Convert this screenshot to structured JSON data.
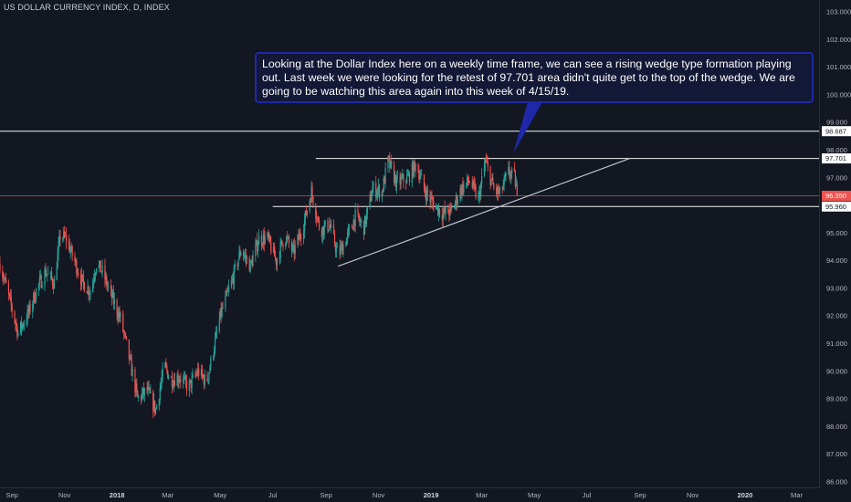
{
  "chart_data": {
    "type": "candlestick",
    "title": "US DOLLAR CURRENCY INDEX, D, INDEX",
    "ylim": [
      85.8,
      103.3
    ],
    "xlim": [
      "2017-08-18",
      "2020-03-27"
    ],
    "y_ticks": [
      "86.000",
      "87.000",
      "88.000",
      "89.000",
      "90.000",
      "91.000",
      "92.000",
      "93.000",
      "94.000",
      "95.000",
      "96.000",
      "97.000",
      "98.000",
      "99.000",
      "100.000",
      "101.000",
      "102.000",
      "103.000"
    ],
    "x_ticks": [
      {
        "label": "Sep",
        "date": "2017-09-01"
      },
      {
        "label": "Nov",
        "date": "2017-11-01"
      },
      {
        "label": "2018",
        "date": "2018-01-01",
        "bold": true
      },
      {
        "label": "Mar",
        "date": "2018-03-01"
      },
      {
        "label": "May",
        "date": "2018-05-01"
      },
      {
        "label": "Jul",
        "date": "2018-07-01"
      },
      {
        "label": "Sep",
        "date": "2018-09-01"
      },
      {
        "label": "Nov",
        "date": "2018-11-01"
      },
      {
        "label": "2019",
        "date": "2019-01-01",
        "bold": true
      },
      {
        "label": "Mar",
        "date": "2019-03-01"
      },
      {
        "label": "May",
        "date": "2019-05-01"
      },
      {
        "label": "Jul",
        "date": "2019-07-01"
      },
      {
        "label": "Sep",
        "date": "2019-09-01"
      },
      {
        "label": "Nov",
        "date": "2019-11-01"
      },
      {
        "label": "2020",
        "date": "2020-01-01",
        "bold": true
      },
      {
        "label": "Mar",
        "date": "2020-03-01"
      }
    ],
    "horizontal_levels": [
      {
        "label": "98.687",
        "value": 98.687,
        "start": "2017-08-18",
        "color": "#ffffff"
      },
      {
        "label": "97.701",
        "value": 97.701,
        "start": "2018-08-20",
        "color": "#ffffff"
      },
      {
        "label": "96.350",
        "value": 96.35,
        "start": "2017-08-18",
        "color": "#ef5350",
        "current": true
      },
      {
        "label": "95.960",
        "value": 95.96,
        "start": "2018-07-01",
        "color": "#ffffff"
      }
    ],
    "trendline": {
      "from": {
        "date": "2018-09-15",
        "value": 93.8
      },
      "to": {
        "date": "2019-08-20",
        "value": 97.7
      },
      "color": "#c0c4cc"
    },
    "price_path": [
      [
        "2017-08-18",
        93.9
      ],
      [
        "2017-08-29",
        92.6
      ],
      [
        "2017-09-08",
        91.4
      ],
      [
        "2017-09-20",
        92.1
      ],
      [
        "2017-09-30",
        93.0
      ],
      [
        "2017-10-10",
        93.6
      ],
      [
        "2017-10-20",
        93.2
      ],
      [
        "2017-10-27",
        94.9
      ],
      [
        "2017-11-03",
        94.8
      ],
      [
        "2017-11-10",
        94.2
      ],
      [
        "2017-11-22",
        93.2
      ],
      [
        "2017-12-01",
        92.9
      ],
      [
        "2017-12-08",
        93.9
      ],
      [
        "2017-12-15",
        93.6
      ],
      [
        "2017-12-22",
        93.0
      ],
      [
        "2018-01-05",
        91.9
      ],
      [
        "2018-01-15",
        90.5
      ],
      [
        "2018-01-25",
        89.0
      ],
      [
        "2018-02-05",
        89.3
      ],
      [
        "2018-02-15",
        88.6
      ],
      [
        "2018-02-25",
        90.2
      ],
      [
        "2018-03-05",
        89.7
      ],
      [
        "2018-03-15",
        89.8
      ],
      [
        "2018-03-25",
        89.4
      ],
      [
        "2018-04-05",
        90.0
      ],
      [
        "2018-04-15",
        89.6
      ],
      [
        "2018-04-22",
        90.6
      ],
      [
        "2018-05-01",
        92.0
      ],
      [
        "2018-05-15",
        93.3
      ],
      [
        "2018-05-25",
        94.4
      ],
      [
        "2018-06-05",
        93.8
      ],
      [
        "2018-06-15",
        94.8
      ],
      [
        "2018-06-25",
        94.8
      ],
      [
        "2018-07-05",
        94.0
      ],
      [
        "2018-07-15",
        94.9
      ],
      [
        "2018-07-25",
        94.3
      ],
      [
        "2018-08-05",
        95.2
      ],
      [
        "2018-08-15",
        96.5
      ],
      [
        "2018-08-25",
        95.1
      ],
      [
        "2018-09-05",
        95.3
      ],
      [
        "2018-09-15",
        94.2
      ],
      [
        "2018-09-25",
        94.8
      ],
      [
        "2018-10-05",
        95.6
      ],
      [
        "2018-10-15",
        95.2
      ],
      [
        "2018-10-25",
        96.6
      ],
      [
        "2018-11-05",
        96.5
      ],
      [
        "2018-11-12",
        97.6
      ],
      [
        "2018-11-22",
        96.8
      ],
      [
        "2018-12-05",
        97.0
      ],
      [
        "2018-12-15",
        97.5
      ],
      [
        "2018-12-25",
        96.5
      ],
      [
        "2019-01-05",
        96.0
      ],
      [
        "2019-01-15",
        95.7
      ],
      [
        "2019-01-25",
        95.8
      ],
      [
        "2019-02-05",
        96.6
      ],
      [
        "2019-02-15",
        96.9
      ],
      [
        "2019-02-25",
        96.2
      ],
      [
        "2019-03-05",
        97.6
      ],
      [
        "2019-03-15",
        96.6
      ],
      [
        "2019-03-22",
        96.4
      ],
      [
        "2019-04-01",
        97.2
      ],
      [
        "2019-04-08",
        97.0
      ],
      [
        "2019-04-12",
        96.35
      ]
    ]
  },
  "annotation": {
    "text": "Looking at the Dollar Index here on a weekly time frame, we can see a rising wedge type formation playing out. Last week we were looking for the retest of 97.701 area didn't quite get to the top of the wedge. We are going to be watching this area again into this week of 4/15/19."
  },
  "colors": {
    "background": "#131722",
    "up": "#26a69a",
    "down": "#ef5350",
    "note_bg": "#131836",
    "note_border": "#1e28a8"
  }
}
